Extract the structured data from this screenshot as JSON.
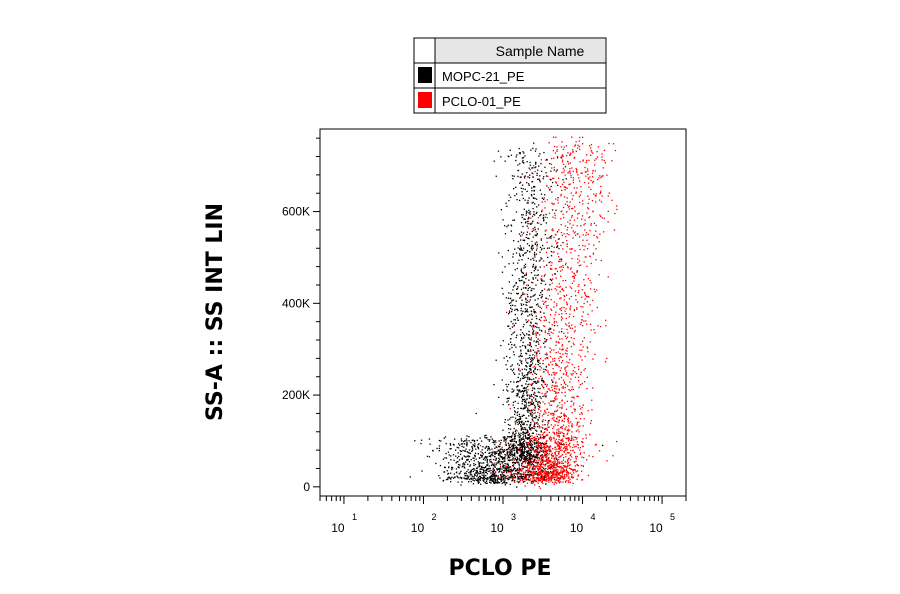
{
  "chart_data": {
    "type": "scatter",
    "xlabel": "PCLO PE",
    "ylabel": "SS-A :: SS INT LIN",
    "x_scale": "log",
    "xlim": [
      5,
      200000
    ],
    "ylim": [
      -20000,
      780000
    ],
    "x_ticks": [
      {
        "base": "10",
        "exp": "1"
      },
      {
        "base": "10",
        "exp": "2"
      },
      {
        "base": "10",
        "exp": "3"
      },
      {
        "base": "10",
        "exp": "4"
      },
      {
        "base": "10",
        "exp": "5"
      }
    ],
    "y_ticks": [
      {
        "value": 0,
        "label": "0"
      },
      {
        "value": 200000,
        "label": "200K"
      },
      {
        "value": 400000,
        "label": "400K"
      },
      {
        "value": 600000,
        "label": "600K"
      }
    ],
    "legend": {
      "title": "Sample Name",
      "placement": "top-center",
      "entries": [
        {
          "name": "MOPC-21_PE",
          "color": "#000000"
        },
        {
          "name": "PCLO-01_PE",
          "color": "#ff0000"
        }
      ]
    },
    "series": [
      {
        "name": "PCLO-01_PE",
        "color": "#ff0000",
        "populations": [
          {
            "log_x_center": 3.7,
            "log_x_sd": 0.18,
            "y_low": 20000,
            "y_high": 760000,
            "log_x_slope": 0.3,
            "weight": 0.7
          },
          {
            "log_x_center": 3.45,
            "log_x_sd": 0.2,
            "y_low": 15000,
            "y_high": 110000,
            "log_x_slope": 0.1,
            "weight": 0.3
          }
        ]
      },
      {
        "name": "MOPC-21_PE",
        "color": "#000000",
        "populations": [
          {
            "log_x_center": 3.28,
            "log_x_sd": 0.12,
            "y_low": 60000,
            "y_high": 740000,
            "log_x_slope": 0.1,
            "weight": 0.6
          },
          {
            "log_x_center": 2.85,
            "log_x_sd": 0.28,
            "y_low": 15000,
            "y_high": 110000,
            "log_x_slope": 0.0,
            "weight": 0.4
          }
        ]
      }
    ]
  }
}
